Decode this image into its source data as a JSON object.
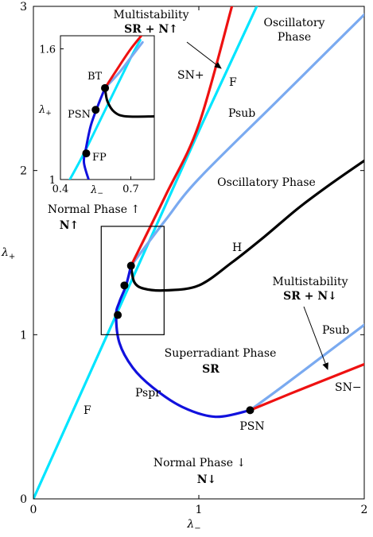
{
  "chart_data": {
    "type": "line",
    "xlabel_base": "λ",
    "xlabel_sub": "−",
    "ylabel_base": "λ",
    "ylabel_sub": "+",
    "xlim": [
      0,
      2
    ],
    "ylim": [
      0,
      3
    ],
    "x_ticks": [
      "0",
      "1",
      "2"
    ],
    "y_ticks": [
      "0",
      "1",
      "2",
      "3"
    ],
    "colors": {
      "F": "#00e5ff",
      "P_sub": "#7aaaf0",
      "SN": "#ee1111",
      "H": "#000000",
      "P_spr": "#1111dd"
    },
    "series": [
      {
        "name": "F",
        "x": [
          0,
          0.5,
          1.0,
          1.35
        ],
        "y": [
          0,
          1.12,
          2.24,
          3.0
        ]
      },
      {
        "name": "SN+",
        "x": [
          0.59,
          0.8,
          1.0,
          1.2
        ],
        "y": [
          1.42,
          1.85,
          2.28,
          3.0
        ]
      },
      {
        "name": "Psub (upper)",
        "x": [
          0.59,
          0.8,
          1.0,
          1.5,
          2.0
        ],
        "y": [
          1.42,
          1.7,
          1.95,
          2.45,
          2.95
        ]
      },
      {
        "name": "H",
        "x": [
          0.59,
          0.61,
          0.67,
          0.8,
          1.0,
          1.2,
          1.4,
          1.6,
          1.8,
          2.0
        ],
        "y": [
          1.42,
          1.32,
          1.28,
          1.27,
          1.3,
          1.44,
          1.6,
          1.77,
          1.92,
          2.06
        ]
      },
      {
        "name": "Pspr",
        "x": [
          0.59,
          0.56,
          0.52,
          0.5,
          0.52,
          0.6,
          0.72,
          0.9,
          1.1,
          1.31
        ],
        "y": [
          1.42,
          1.3,
          1.2,
          1.12,
          0.95,
          0.8,
          0.68,
          0.56,
          0.5,
          0.54
        ]
      },
      {
        "name": "SN−",
        "x": [
          1.31,
          1.6,
          2.0
        ],
        "y": [
          0.54,
          0.66,
          0.82
        ]
      },
      {
        "name": "Psub (lower)",
        "x": [
          1.31,
          1.5,
          1.75,
          2.0
        ],
        "y": [
          0.54,
          0.68,
          0.87,
          1.06
        ]
      }
    ],
    "points": [
      {
        "x": 0.59,
        "y": 1.42
      },
      {
        "x": 0.55,
        "y": 1.3
      },
      {
        "x": 0.51,
        "y": 1.12
      },
      {
        "x": 1.31,
        "y": 0.54
      }
    ],
    "zoom_box": {
      "x": [
        0.41,
        0.79
      ],
      "y": [
        1.0,
        1.66
      ]
    },
    "inset": {
      "xlim": [
        0.4,
        0.8
      ],
      "ylim": [
        1.0,
        1.66
      ],
      "x_ticks": [
        "0.4",
        "0.7"
      ],
      "y_ticks": [
        "1",
        "1.6"
      ],
      "xlabel_base": "λ",
      "xlabel_sub": "−",
      "ylabel_base": "λ",
      "ylabel_sub": "+",
      "series": [
        {
          "name": "F",
          "x": [
            0.44,
            0.5,
            0.6,
            0.7,
            0.74
          ],
          "y": [
            1.0,
            1.12,
            1.34,
            1.56,
            1.64
          ]
        },
        {
          "name": "SN+",
          "x": [
            0.59,
            0.65,
            0.7,
            0.76
          ],
          "y": [
            1.42,
            1.52,
            1.6,
            1.68
          ]
        },
        {
          "name": "Psub",
          "x": [
            0.59,
            0.65,
            0.7,
            0.75
          ],
          "y": [
            1.42,
            1.49,
            1.56,
            1.63
          ]
        },
        {
          "name": "H",
          "x": [
            0.59,
            0.6,
            0.63,
            0.68,
            0.8
          ],
          "y": [
            1.42,
            1.36,
            1.31,
            1.29,
            1.29
          ]
        },
        {
          "name": "Pspr",
          "x": [
            0.59,
            0.56,
            0.53,
            0.51,
            0.5,
            0.52
          ],
          "y": [
            1.42,
            1.34,
            1.25,
            1.15,
            1.08,
            1.0
          ]
        }
      ],
      "points": [
        {
          "label": "BT",
          "x": 0.59,
          "y": 1.42
        },
        {
          "label": "PSN",
          "x": 0.55,
          "y": 1.32
        },
        {
          "label": "FP",
          "x": 0.51,
          "y": 1.12
        }
      ]
    },
    "annotations": {
      "multistability_top_line1": "Multistability",
      "multistability_top_line2": "SR + N↑",
      "oscillatory_phase_top_line1": "Oscillatory",
      "oscillatory_phase_top_line2": "Phase",
      "oscillatory_phase_mid": "Oscillatory Phase",
      "normal_phase_up": "Normal Phase ↑",
      "normal_phase_up_sym": "N↑",
      "sn_plus": "SN+",
      "f_top": "F",
      "psub_top": "Psub",
      "h_label": "H",
      "multistability_right_line1": "Multistability",
      "multistability_right_line2": "SR + N↓",
      "psub_right": "Psub",
      "sn_minus": "SN−",
      "superradiant_line1": "Superradiant Phase",
      "superradiant_line2": "SR",
      "pspr": "Pspr",
      "psn": "PSN",
      "f_bottom": "F",
      "normal_phase_down": "Normal Phase ↓",
      "normal_phase_down_sym": "N↓"
    }
  }
}
